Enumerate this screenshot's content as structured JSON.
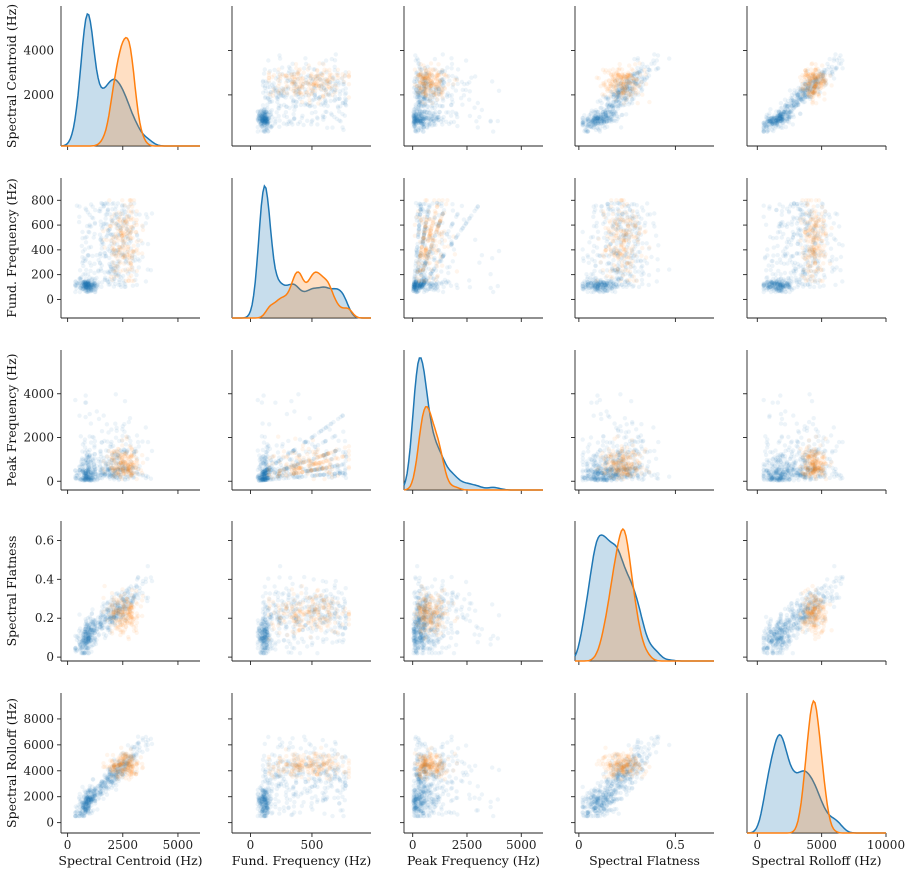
{
  "chart_data": {
    "type": "pairplot",
    "title": "",
    "variables": [
      {
        "key": "centroid",
        "label": "Spectral Centroid (Hz)",
        "range": [
          -300,
          6000
        ],
        "ticks": [
          0,
          2500,
          5000
        ],
        "yticks": [
          2000,
          4000
        ]
      },
      {
        "key": "fund",
        "label": "Fund. Frequency (Hz)",
        "range": [
          -150,
          980
        ],
        "ticks": [
          0,
          500
        ],
        "yticks": [
          0,
          200,
          400,
          600,
          800
        ]
      },
      {
        "key": "peak",
        "label": "Peak Frequency (Hz)",
        "range": [
          -400,
          6000
        ],
        "ticks": [
          0,
          2500,
          5000
        ],
        "yticks": [
          0,
          2000,
          4000
        ]
      },
      {
        "key": "flatness",
        "label": "Spectral Flatness",
        "range": [
          -0.02,
          0.7
        ],
        "ticks": [
          0.0,
          0.5
        ],
        "yticks": [
          0.0,
          0.2,
          0.4,
          0.6
        ]
      },
      {
        "key": "rolloff",
        "label": "Spectral Rolloff (Hz)",
        "range": [
          -800,
          10000
        ],
        "ticks": [
          0,
          5000,
          10000
        ],
        "yticks": [
          0,
          2000,
          4000,
          6000,
          8000
        ]
      }
    ],
    "series": [
      {
        "color": "#1f77b4",
        "count": 520
      },
      {
        "color": "#ff7f0e",
        "count": 200
      }
    ],
    "diag": "kde",
    "offdiag": "scatter",
    "grid": false,
    "legend": "none"
  }
}
